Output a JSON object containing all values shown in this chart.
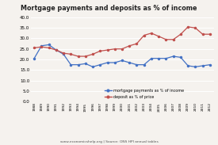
{
  "title": "Mortgage payments and deposits as % of income",
  "years": [
    1988,
    1989,
    1990,
    1991,
    1992,
    1993,
    1994,
    1995,
    1996,
    1997,
    1998,
    1999,
    2000,
    2001,
    2002,
    2003,
    2004,
    2005,
    2006,
    2007,
    2008,
    2009,
    2010,
    2011,
    2012
  ],
  "mortgage": [
    20.5,
    26.5,
    27.0,
    24.5,
    22.5,
    17.5,
    17.5,
    18.0,
    16.5,
    17.5,
    18.5,
    18.5,
    19.5,
    18.5,
    17.5,
    17.5,
    20.5,
    20.5,
    20.5,
    21.5,
    21.0,
    17.0,
    16.5,
    17.0,
    17.5
  ],
  "deposit": [
    25.5,
    26.0,
    25.5,
    24.5,
    23.0,
    22.5,
    21.5,
    21.5,
    22.5,
    24.0,
    24.5,
    25.0,
    25.0,
    26.5,
    27.5,
    31.5,
    32.5,
    31.0,
    29.5,
    29.5,
    32.0,
    35.5,
    35.0,
    32.0,
    32.0
  ],
  "mortgage_color": "#4472c4",
  "deposit_color": "#c0504d",
  "ylim": [
    0,
    40
  ],
  "yticks": [
    0.0,
    5.0,
    10.0,
    15.0,
    20.0,
    25.0,
    30.0,
    35.0,
    40.0
  ],
  "ytick_labels": [
    "0.0",
    "5.0",
    "10.0",
    "15.0",
    "20.0",
    "25.0",
    "30.0",
    "35.0",
    "40.0"
  ],
  "source_text": "www.economicshelp.org | Source: ONS HPI annual tables",
  "legend_mortgage": "mortgage payments as % of income",
  "legend_deposit": "deposit as % of price",
  "bg_color": "#f5f2ee",
  "grid_color": "#e0ddd8"
}
